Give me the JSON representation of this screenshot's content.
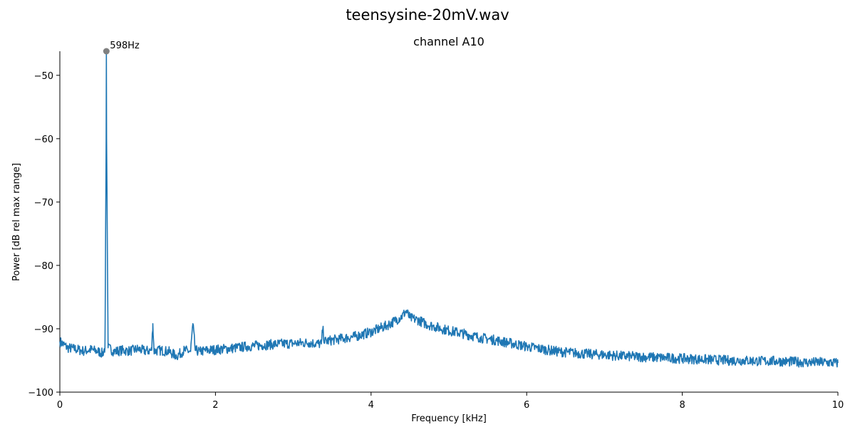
{
  "chart_data": {
    "type": "line",
    "title": "teensysine-20mV.wav",
    "subtitle": "channel A10",
    "xlabel": "Frequency [kHz]",
    "ylabel": "Power [dB rel max range]",
    "xlim": [
      0,
      10
    ],
    "ylim": [
      -100,
      -46.2
    ],
    "xticks": [
      0,
      2,
      4,
      6,
      8,
      10
    ],
    "yticks": [
      -100,
      -90,
      -80,
      -70,
      -60,
      -50
    ],
    "xtick_labels": [
      "0",
      "2",
      "4",
      "6",
      "8",
      "10"
    ],
    "ytick_labels": [
      "−100",
      "−90",
      "−80",
      "−70",
      "−60",
      "−50"
    ],
    "grid": false,
    "line_color": "#1f77b4",
    "marker_color": "#808080",
    "peak": {
      "x": 0.598,
      "y": -46.2,
      "label": "598Hz"
    },
    "series": [
      {
        "points": [
          [
            0.0,
            -92.0
          ],
          [
            0.1,
            -93.0
          ],
          [
            0.2,
            -93.2
          ],
          [
            0.3,
            -93.5
          ],
          [
            0.4,
            -93.3
          ],
          [
            0.5,
            -93.6
          ],
          [
            0.55,
            -93.9
          ],
          [
            0.58,
            -93.0
          ],
          [
            0.595,
            -60.0
          ],
          [
            0.598,
            -46.2
          ],
          [
            0.601,
            -60.0
          ],
          [
            0.62,
            -93.0
          ],
          [
            0.7,
            -93.6
          ],
          [
            0.8,
            -93.4
          ],
          [
            0.9,
            -93.5
          ],
          [
            1.0,
            -93.2
          ],
          [
            1.1,
            -93.5
          ],
          [
            1.18,
            -93.4
          ],
          [
            1.195,
            -89.2
          ],
          [
            1.21,
            -93.5
          ],
          [
            1.3,
            -93.4
          ],
          [
            1.4,
            -93.6
          ],
          [
            1.5,
            -94.3
          ],
          [
            1.6,
            -93.4
          ],
          [
            1.68,
            -93.6
          ],
          [
            1.71,
            -89.2
          ],
          [
            1.74,
            -93.4
          ],
          [
            1.8,
            -93.6
          ],
          [
            1.9,
            -93.4
          ],
          [
            2.0,
            -93.3
          ],
          [
            2.2,
            -93.1
          ],
          [
            2.4,
            -92.8
          ],
          [
            2.6,
            -92.6
          ],
          [
            2.8,
            -92.4
          ],
          [
            3.0,
            -92.3
          ],
          [
            3.2,
            -92.2
          ],
          [
            3.36,
            -92.4
          ],
          [
            3.38,
            -90.0
          ],
          [
            3.4,
            -92.0
          ],
          [
            3.6,
            -91.6
          ],
          [
            3.8,
            -91.2
          ],
          [
            4.0,
            -90.5
          ],
          [
            4.2,
            -89.5
          ],
          [
            4.3,
            -88.8
          ],
          [
            4.4,
            -88.0
          ],
          [
            4.45,
            -87.2
          ],
          [
            4.5,
            -88.3
          ],
          [
            4.6,
            -88.6
          ],
          [
            4.7,
            -89.2
          ],
          [
            4.8,
            -89.6
          ],
          [
            5.0,
            -90.3
          ],
          [
            5.2,
            -90.8
          ],
          [
            5.4,
            -91.4
          ],
          [
            5.6,
            -91.8
          ],
          [
            5.8,
            -92.3
          ],
          [
            6.0,
            -92.8
          ],
          [
            6.2,
            -93.2
          ],
          [
            6.4,
            -93.6
          ],
          [
            6.6,
            -93.8
          ],
          [
            6.8,
            -94.0
          ],
          [
            7.0,
            -94.1
          ],
          [
            7.2,
            -94.3
          ],
          [
            7.4,
            -94.4
          ],
          [
            7.6,
            -94.5
          ],
          [
            7.8,
            -94.6
          ],
          [
            8.0,
            -94.7
          ],
          [
            8.2,
            -94.8
          ],
          [
            8.4,
            -94.9
          ],
          [
            8.6,
            -95.0
          ],
          [
            8.8,
            -95.0
          ],
          [
            9.0,
            -95.1
          ],
          [
            9.2,
            -95.1
          ],
          [
            9.4,
            -95.2
          ],
          [
            9.6,
            -95.3
          ],
          [
            9.8,
            -95.3
          ],
          [
            10.0,
            -95.4
          ]
        ]
      }
    ]
  }
}
